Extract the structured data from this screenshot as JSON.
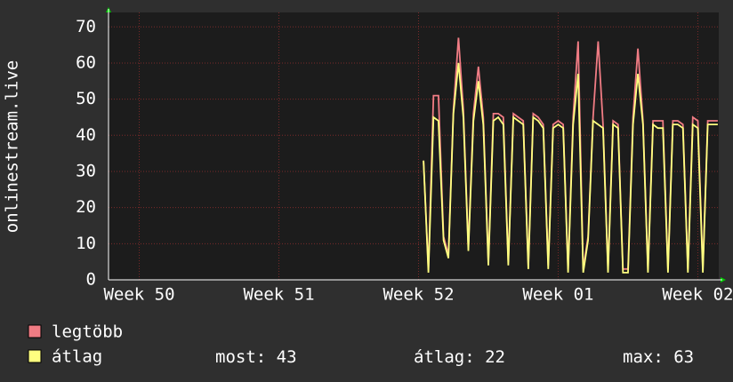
{
  "chart_data": {
    "type": "line",
    "y_label": "onlinestream.live",
    "x": [
      2.036,
      2.071,
      2.107,
      2.143,
      2.179,
      2.214,
      2.25,
      2.286,
      2.321,
      2.357,
      2.393,
      2.429,
      2.464,
      2.5,
      2.536,
      2.571,
      2.607,
      2.643,
      2.679,
      2.714,
      2.75,
      2.786,
      2.821,
      2.857,
      2.893,
      2.929,
      2.964,
      3.0,
      3.036,
      3.071,
      3.107,
      3.143,
      3.179,
      3.214,
      3.25,
      3.286,
      3.321,
      3.357,
      3.393,
      3.429,
      3.464,
      3.5,
      3.536,
      3.571,
      3.607,
      3.643,
      3.679,
      3.714,
      3.75,
      3.786,
      3.821,
      3.857,
      3.893,
      3.929,
      3.964,
      4.0,
      4.036,
      4.071,
      4.107,
      4.143
    ],
    "series": [
      {
        "name": "legtöbb",
        "color": "#f07c84",
        "values": [
          33,
          3,
          51,
          51,
          12,
          7,
          47,
          67,
          47,
          9,
          46,
          59,
          45,
          5,
          46,
          46,
          45,
          5,
          46,
          45,
          44,
          4,
          46,
          45,
          43,
          4,
          43,
          44,
          43,
          3,
          45,
          66,
          3,
          12,
          45,
          66,
          43,
          3,
          44,
          43,
          3,
          3,
          45,
          64,
          44,
          3,
          44,
          44,
          44,
          3,
          44,
          44,
          43,
          3,
          45,
          44,
          3,
          44,
          44,
          44
        ]
      },
      {
        "name": "átlag",
        "color": "#ffff80",
        "values": [
          33,
          2,
          45,
          44,
          11,
          6,
          46,
          60,
          45,
          8,
          44,
          55,
          43,
          4,
          44,
          45,
          43,
          4,
          45,
          44,
          43,
          3,
          45,
          44,
          42,
          3,
          42,
          43,
          42,
          2,
          43,
          57,
          2,
          11,
          44,
          43,
          42,
          2,
          43,
          42,
          2,
          2,
          43,
          57,
          43,
          2,
          43,
          42,
          42,
          2,
          43,
          43,
          42,
          2,
          43,
          42,
          2,
          43,
          43,
          43
        ]
      }
    ],
    "stats": [
      {
        "name": "most:",
        "value": 43
      },
      {
        "name": "átlag:",
        "value": 22
      },
      {
        "name": "max:",
        "value": 63
      }
    ],
    "xlim": [
      -0.22,
      4.15
    ],
    "xticks": [
      {
        "value": 0,
        "label": "Week 50"
      },
      {
        "value": 1,
        "label": "Week 51"
      },
      {
        "value": 2,
        "label": "Week 52"
      },
      {
        "value": 3,
        "label": "Week 01"
      },
      {
        "value": 4,
        "label": "Week 02"
      }
    ],
    "ylim": [
      0,
      74
    ],
    "yticks": [
      0,
      10,
      20,
      30,
      40,
      50,
      60,
      70
    ],
    "grid": true
  }
}
